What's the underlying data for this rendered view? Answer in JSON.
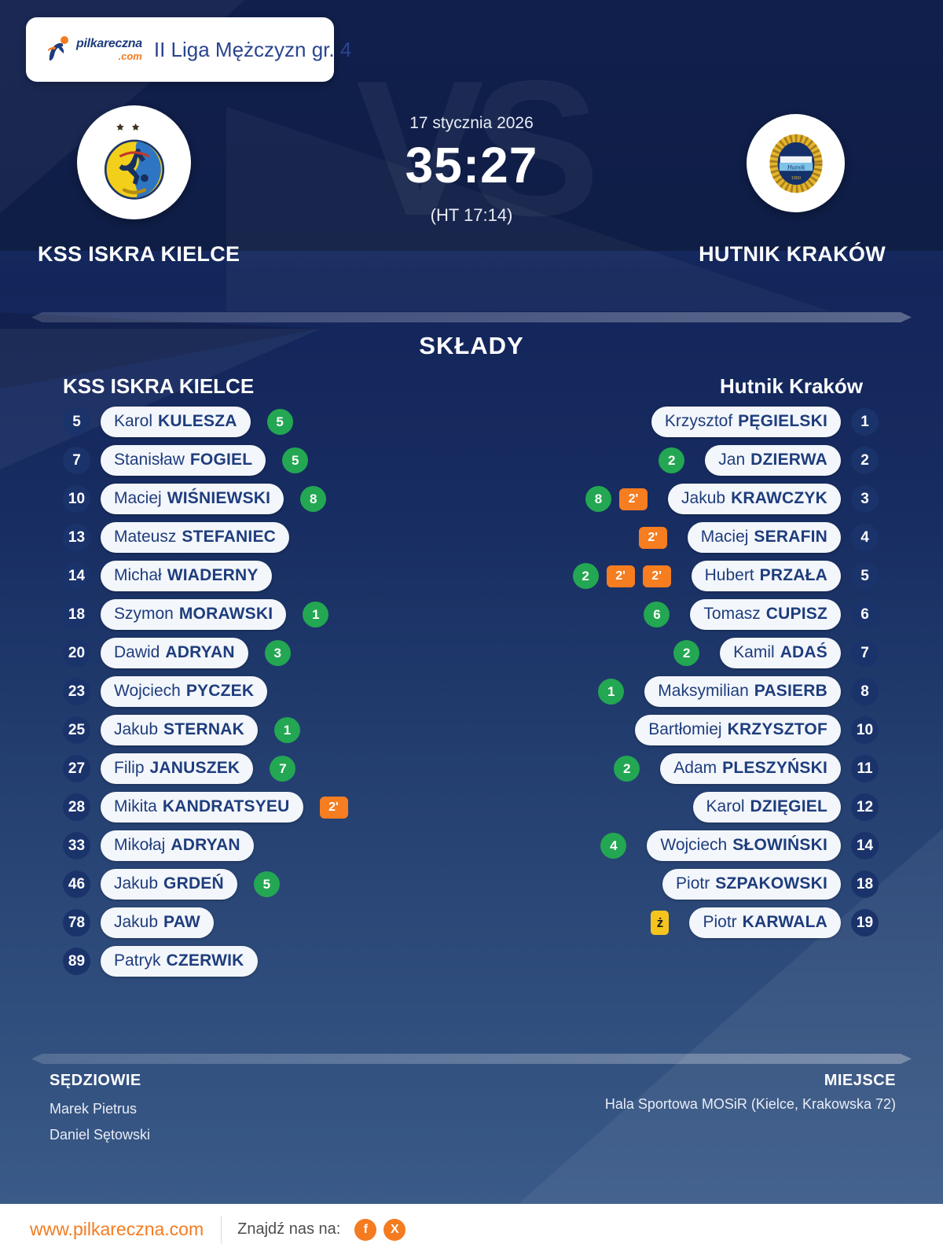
{
  "brand": {
    "name": "pilkareczna",
    "tld": ".com"
  },
  "header": {
    "league": "II Liga Mężczyzn gr. 4"
  },
  "match": {
    "date": "17 stycznia 2026",
    "score": "35:27",
    "halftime": "(HT 17:14)",
    "vs": "VS",
    "home_name": "KSS ISKRA KIELCE",
    "away_name": "HUTNIK KRAKÓW"
  },
  "labels": {
    "two_min": "2'",
    "yellow_card": "ż"
  },
  "lineups": {
    "title": "SKŁADY",
    "home_title": "KSS ISKRA KIELCE",
    "away_title": "Hutnik Kraków",
    "home": [
      {
        "number": 5,
        "first": "Karol",
        "last": "KULESZA",
        "goals": 5,
        "two_min": 0,
        "yellow": 0
      },
      {
        "number": 7,
        "first": "Stanisław",
        "last": "FOGIEL",
        "goals": 5,
        "two_min": 0,
        "yellow": 0
      },
      {
        "number": 10,
        "first": "Maciej",
        "last": "WIŚNIEWSKI",
        "goals": 8,
        "two_min": 0,
        "yellow": 0
      },
      {
        "number": 13,
        "first": "Mateusz",
        "last": "STEFANIEC",
        "goals": 0,
        "two_min": 0,
        "yellow": 0
      },
      {
        "number": 14,
        "first": "Michał",
        "last": "WIADERNY",
        "goals": 0,
        "two_min": 0,
        "yellow": 0
      },
      {
        "number": 18,
        "first": "Szymon",
        "last": "MORAWSKI",
        "goals": 1,
        "two_min": 0,
        "yellow": 0
      },
      {
        "number": 20,
        "first": "Dawid",
        "last": "ADRYAN",
        "goals": 3,
        "two_min": 0,
        "yellow": 0
      },
      {
        "number": 23,
        "first": "Wojciech",
        "last": "PYCZEK",
        "goals": 0,
        "two_min": 0,
        "yellow": 0
      },
      {
        "number": 25,
        "first": "Jakub",
        "last": "STERNAK",
        "goals": 1,
        "two_min": 0,
        "yellow": 0
      },
      {
        "number": 27,
        "first": "Filip",
        "last": "JANUSZEK",
        "goals": 7,
        "two_min": 0,
        "yellow": 0
      },
      {
        "number": 28,
        "first": "Mikita",
        "last": "KANDRATSYEU",
        "goals": 0,
        "two_min": 1,
        "yellow": 0
      },
      {
        "number": 33,
        "first": "Mikołaj",
        "last": "ADRYAN",
        "goals": 0,
        "two_min": 0,
        "yellow": 0
      },
      {
        "number": 46,
        "first": "Jakub",
        "last": "GRDEŃ",
        "goals": 5,
        "two_min": 0,
        "yellow": 0
      },
      {
        "number": 78,
        "first": "Jakub",
        "last": "PAW",
        "goals": 0,
        "two_min": 0,
        "yellow": 0
      },
      {
        "number": 89,
        "first": "Patryk",
        "last": "CZERWIK",
        "goals": 0,
        "two_min": 0,
        "yellow": 0
      }
    ],
    "away": [
      {
        "number": 1,
        "first": "Krzysztof",
        "last": "PĘGIELSKI",
        "goals": 0,
        "two_min": 0,
        "yellow": 0
      },
      {
        "number": 2,
        "first": "Jan",
        "last": "DZIERWA",
        "goals": 2,
        "two_min": 0,
        "yellow": 0
      },
      {
        "number": 3,
        "first": "Jakub",
        "last": "KRAWCZYK",
        "goals": 8,
        "two_min": 1,
        "yellow": 0
      },
      {
        "number": 4,
        "first": "Maciej",
        "last": "SERAFIN",
        "goals": 0,
        "two_min": 1,
        "yellow": 0
      },
      {
        "number": 5,
        "first": "Hubert",
        "last": "PRZAŁA",
        "goals": 2,
        "two_min": 2,
        "yellow": 0
      },
      {
        "number": 6,
        "first": "Tomasz",
        "last": "CUPISZ",
        "goals": 6,
        "two_min": 0,
        "yellow": 0
      },
      {
        "number": 7,
        "first": "Kamil",
        "last": "ADAŚ",
        "goals": 2,
        "two_min": 0,
        "yellow": 0
      },
      {
        "number": 8,
        "first": "Maksymilian",
        "last": "PASIERB",
        "goals": 1,
        "two_min": 0,
        "yellow": 0
      },
      {
        "number": 10,
        "first": "Bartłomiej",
        "last": "KRZYSZTOF",
        "goals": 0,
        "two_min": 0,
        "yellow": 0
      },
      {
        "number": 11,
        "first": "Adam",
        "last": "PLESZYŃSKI",
        "goals": 2,
        "two_min": 0,
        "yellow": 0
      },
      {
        "number": 12,
        "first": "Karol",
        "last": "DZIĘGIEL",
        "goals": 0,
        "two_min": 0,
        "yellow": 0
      },
      {
        "number": 14,
        "first": "Wojciech",
        "last": "SŁOWIŃSKI",
        "goals": 4,
        "two_min": 0,
        "yellow": 0
      },
      {
        "number": 18,
        "first": "Piotr",
        "last": "SZPAKOWSKI",
        "goals": 0,
        "two_min": 0,
        "yellow": 0
      },
      {
        "number": 19,
        "first": "Piotr",
        "last": "KARWALA",
        "goals": 0,
        "two_min": 0,
        "yellow": 1
      }
    ]
  },
  "officials": {
    "referees_label": "SĘDZIOWIE",
    "referees": [
      "Marek Pietrus",
      "Daniel Sętowski"
    ],
    "venue_label": "MIEJSCE",
    "venue": "Hala Sportowa MOSiR (Kielce, Krakowska 72)"
  },
  "footer": {
    "url": "www.pilkareczna.com",
    "find_us": "Znajdź nas na:",
    "facebook": "f",
    "x": "X"
  },
  "colors": {
    "accent_orange": "#f47b20",
    "goal_green": "#23a752",
    "suspension_orange": "#f67d20",
    "yellow_card": "#f5c51d",
    "navy_text": "#1e3d7d",
    "background_top": "#13255a",
    "background_bottom": "#3d5d8c"
  }
}
